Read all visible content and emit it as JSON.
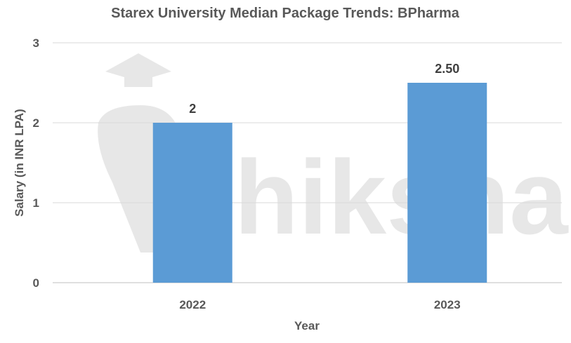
{
  "chart_data": {
    "type": "bar",
    "title": "Starex University Median Package Trends: BPharma",
    "xlabel": "Year",
    "ylabel": "Salary (in INR LPA)",
    "categories": [
      "2022",
      "2023"
    ],
    "values": [
      2,
      2.5
    ],
    "data_labels": [
      "2",
      "2.50"
    ],
    "ylim": [
      0,
      3
    ],
    "yticks": [
      0,
      1,
      2,
      3
    ],
    "grid": true,
    "legend": "none",
    "bar_color": "#5B9BD5",
    "watermark": "shiksha"
  }
}
